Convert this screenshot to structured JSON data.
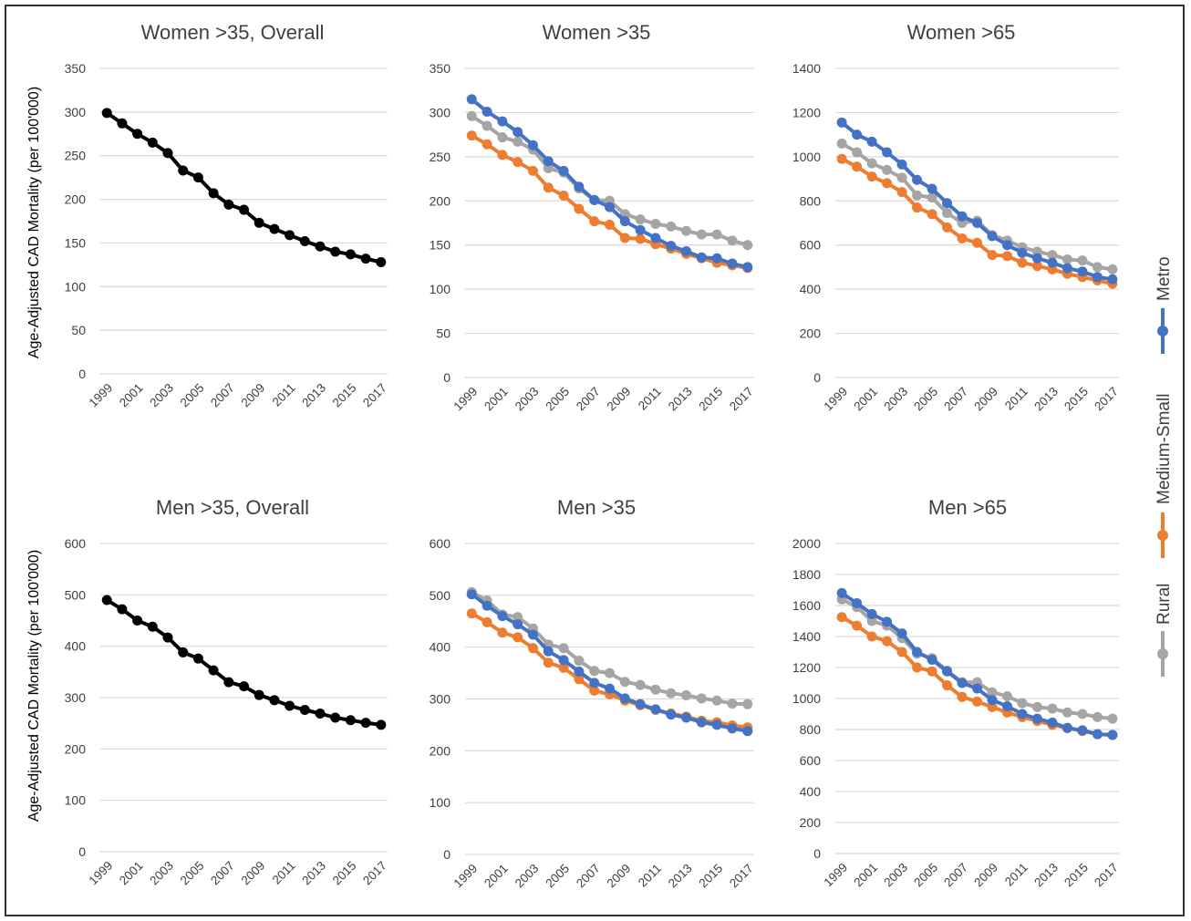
{
  "colors": {
    "Metro": "#4472C4",
    "Medium-Small": "#ED7D31",
    "Rural": "#A5A5A5",
    "Overall": "#000000",
    "grid": "#d9d9d9",
    "text": "#404040"
  },
  "y_axis_label": "Age-Adjusted CAD Mortality (per 100'000)",
  "legend": [
    "Metro",
    "Medium-Small",
    "Rural"
  ],
  "chart_data": [
    {
      "type": "line",
      "title": "Women >35, Overall",
      "ylabel": "Age-Adjusted CAD Mortality (per 100'000)",
      "ylim": [
        0,
        350
      ],
      "yticks": [
        "0",
        "50",
        "100",
        "150",
        "200",
        "250",
        "300",
        "350"
      ],
      "x": [
        "1999",
        "2000",
        "2001",
        "2002",
        "2003",
        "2004",
        "2005",
        "2006",
        "2007",
        "2008",
        "2009",
        "2010",
        "2011",
        "2012",
        "2013",
        "2014",
        "2015",
        "2016",
        "2017"
      ],
      "xticks": [
        "1999",
        "2001",
        "2003",
        "2005",
        "2007",
        "2009",
        "2011",
        "2013",
        "2015",
        "2017"
      ],
      "grid": true,
      "series": [
        {
          "key": "Overall",
          "values": [
            299,
            287,
            275,
            265,
            253,
            233,
            225,
            207,
            194,
            188,
            173,
            166,
            159,
            152,
            146,
            140,
            137,
            132,
            128
          ]
        }
      ]
    },
    {
      "type": "line",
      "title": "Women >35",
      "ylim": [
        0,
        350
      ],
      "yticks": [
        "0",
        "50",
        "100",
        "150",
        "200",
        "250",
        "300",
        "350"
      ],
      "x": [
        "1999",
        "2000",
        "2001",
        "2002",
        "2003",
        "2004",
        "2005",
        "2006",
        "2007",
        "2008",
        "2009",
        "2010",
        "2011",
        "2012",
        "2013",
        "2014",
        "2015",
        "2016",
        "2017"
      ],
      "xticks": [
        "1999",
        "2001",
        "2003",
        "2005",
        "2007",
        "2009",
        "2011",
        "2013",
        "2015",
        "2017"
      ],
      "grid": true,
      "series": [
        {
          "name": "Metro",
          "values": [
            315,
            301,
            290,
            278,
            263,
            245,
            234,
            216,
            201,
            193,
            177,
            167,
            158,
            149,
            143,
            136,
            135,
            129,
            125
          ]
        },
        {
          "name": "Medium-Small",
          "values": [
            274,
            264,
            252,
            244,
            234,
            215,
            206,
            191,
            177,
            173,
            158,
            157,
            151,
            146,
            140,
            135,
            130,
            127,
            124
          ]
        },
        {
          "name": "Rural",
          "values": [
            296,
            285,
            272,
            267,
            258,
            237,
            232,
            214,
            201,
            200,
            185,
            179,
            174,
            171,
            166,
            162,
            162,
            155,
            150
          ]
        }
      ]
    },
    {
      "type": "line",
      "title": "Women >65",
      "ylim": [
        0,
        1400
      ],
      "yticks": [
        "0",
        "200",
        "400",
        "600",
        "800",
        "1000",
        "1200",
        "1400"
      ],
      "x": [
        "1999",
        "2000",
        "2001",
        "2002",
        "2003",
        "2004",
        "2005",
        "2006",
        "2007",
        "2008",
        "2009",
        "2010",
        "2011",
        "2012",
        "2013",
        "2014",
        "2015",
        "2016",
        "2017"
      ],
      "xticks": [
        "1999",
        "2001",
        "2003",
        "2005",
        "2007",
        "2009",
        "2011",
        "2013",
        "2015",
        "2017"
      ],
      "grid": true,
      "series": [
        {
          "name": "Metro",
          "values": [
            1155,
            1100,
            1068,
            1020,
            965,
            895,
            855,
            790,
            730,
            700,
            640,
            600,
            565,
            540,
            520,
            495,
            480,
            455,
            445
          ]
        },
        {
          "name": "Medium-Small",
          "values": [
            990,
            955,
            910,
            880,
            840,
            770,
            740,
            680,
            630,
            610,
            555,
            550,
            520,
            505,
            490,
            470,
            455,
            440,
            425
          ]
        },
        {
          "name": "Rural",
          "values": [
            1060,
            1020,
            970,
            940,
            905,
            825,
            815,
            745,
            700,
            710,
            645,
            620,
            590,
            570,
            555,
            535,
            530,
            500,
            490
          ]
        }
      ]
    },
    {
      "type": "line",
      "title": "Men >35, Overall",
      "ylabel": "Age-Adjusted CAD Mortality (per 100'000)",
      "ylim": [
        0,
        600
      ],
      "yticks": [
        "0",
        "100",
        "200",
        "300",
        "400",
        "500",
        "600"
      ],
      "x": [
        "1999",
        "2000",
        "2001",
        "2002",
        "2003",
        "2004",
        "2005",
        "2006",
        "2007",
        "2008",
        "2009",
        "2010",
        "2011",
        "2012",
        "2013",
        "2014",
        "2015",
        "2016",
        "2017"
      ],
      "xticks": [
        "1999",
        "2001",
        "2003",
        "2005",
        "2007",
        "2009",
        "2011",
        "2013",
        "2015",
        "2017"
      ],
      "grid": true,
      "series": [
        {
          "key": "Overall",
          "values": [
            490,
            472,
            450,
            438,
            417,
            388,
            376,
            353,
            330,
            322,
            305,
            295,
            284,
            276,
            269,
            261,
            256,
            251,
            247
          ]
        }
      ]
    },
    {
      "type": "line",
      "title": "Men >35",
      "ylim": [
        0,
        600
      ],
      "yticks": [
        "0",
        "100",
        "200",
        "300",
        "400",
        "500",
        "600"
      ],
      "x": [
        "1999",
        "2000",
        "2001",
        "2002",
        "2003",
        "2004",
        "2005",
        "2006",
        "2007",
        "2008",
        "2009",
        "2010",
        "2011",
        "2012",
        "2013",
        "2014",
        "2015",
        "2016",
        "2017"
      ],
      "xticks": [
        "1999",
        "2001",
        "2003",
        "2005",
        "2007",
        "2009",
        "2011",
        "2013",
        "2015",
        "2017"
      ],
      "grid": true,
      "series": [
        {
          "name": "Metro",
          "values": [
            502,
            480,
            460,
            444,
            424,
            392,
            375,
            353,
            331,
            320,
            301,
            290,
            280,
            270,
            264,
            255,
            250,
            243,
            238
          ]
        },
        {
          "name": "Medium-Small",
          "values": [
            465,
            448,
            428,
            419,
            398,
            370,
            360,
            338,
            316,
            309,
            297,
            288,
            279,
            272,
            266,
            258,
            255,
            249,
            245
          ]
        },
        {
          "name": "Rural",
          "values": [
            506,
            490,
            463,
            458,
            436,
            405,
            398,
            374,
            354,
            350,
            333,
            327,
            318,
            311,
            307,
            301,
            297,
            291,
            290
          ]
        }
      ]
    },
    {
      "type": "line",
      "title": "Men >65",
      "ylim": [
        0,
        2000
      ],
      "yticks": [
        "0",
        "200",
        "400",
        "600",
        "800",
        "1000",
        "1200",
        "1400",
        "1600",
        "1800",
        "2000"
      ],
      "x": [
        "1999",
        "2000",
        "2001",
        "2002",
        "2003",
        "2004",
        "2005",
        "2006",
        "2007",
        "2008",
        "2009",
        "2010",
        "2011",
        "2012",
        "2013",
        "2014",
        "2015",
        "2016",
        "2017"
      ],
      "xticks": [
        "1999",
        "2001",
        "2003",
        "2005",
        "2007",
        "2009",
        "2011",
        "2013",
        "2015",
        "2017"
      ],
      "grid": true,
      "series": [
        {
          "name": "Metro",
          "values": [
            1680,
            1615,
            1545,
            1495,
            1420,
            1300,
            1250,
            1175,
            1100,
            1065,
            990,
            950,
            900,
            870,
            845,
            810,
            795,
            770,
            765
          ]
        },
        {
          "name": "Medium-Small",
          "values": [
            1525,
            1470,
            1400,
            1370,
            1300,
            1200,
            1175,
            1085,
            1010,
            980,
            945,
            910,
            880,
            855,
            830,
            810,
            790,
            770,
            765
          ]
        },
        {
          "name": "Rural",
          "values": [
            1640,
            1590,
            1500,
            1470,
            1390,
            1290,
            1260,
            1180,
            1105,
            1105,
            1040,
            1015,
            970,
            945,
            935,
            910,
            900,
            880,
            870
          ]
        }
      ]
    }
  ]
}
